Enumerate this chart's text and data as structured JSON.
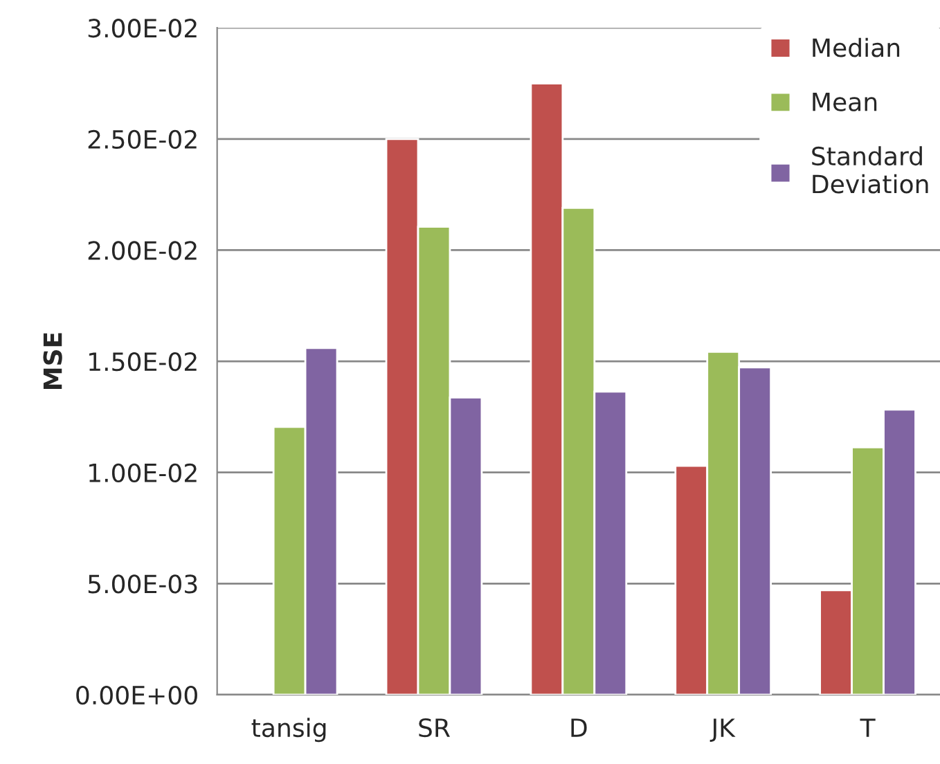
{
  "chart_data": {
    "type": "bar",
    "ylabel": "MSE",
    "categories": [
      "tansig",
      "SR",
      "D",
      "JK",
      "T"
    ],
    "series": [
      {
        "name": "Median",
        "color": "#c0504d",
        "values": [
          null,
          0.025,
          0.0275,
          0.0103,
          0.0047
        ]
      },
      {
        "name": "Mean",
        "color": "#9bbb59",
        "values": [
          0.01205,
          0.02105,
          0.0219,
          0.01543,
          0.01113
        ]
      },
      {
        "name": "Standard\nDeviation",
        "color": "#8064a2",
        "values": [
          0.0156,
          0.01337,
          0.01364,
          0.01473,
          0.01283
        ]
      }
    ],
    "ylim": [
      0,
      0.03
    ],
    "yticks": [
      {
        "value": 0,
        "label": "0.00E+00"
      },
      {
        "value": 0.005,
        "label": "5.00E-03"
      },
      {
        "value": 0.01,
        "label": "1.00E-02"
      },
      {
        "value": 0.015,
        "label": "1.50E-02"
      },
      {
        "value": 0.02,
        "label": "2.00E-02"
      },
      {
        "value": 0.025,
        "label": "2.50E-02"
      },
      {
        "value": 0.03,
        "label": "3.00E-02"
      }
    ],
    "grid": "y",
    "legend": "top right"
  }
}
